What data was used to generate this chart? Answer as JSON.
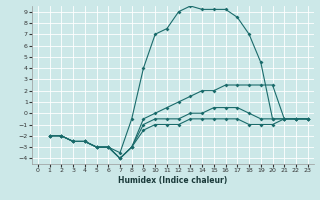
{
  "title": "",
  "xlabel": "Humidex (Indice chaleur)",
  "background_color": "#cce8e8",
  "grid_color": "#ffffff",
  "line_color": "#1a6b6b",
  "xlim": [
    -0.5,
    23.5
  ],
  "ylim": [
    -4.5,
    9.5
  ],
  "yticks": [
    -4,
    -3,
    -2,
    -1,
    0,
    1,
    2,
    3,
    4,
    5,
    6,
    7,
    8,
    9
  ],
  "xticks": [
    0,
    1,
    2,
    3,
    4,
    5,
    6,
    7,
    8,
    9,
    10,
    11,
    12,
    13,
    14,
    15,
    16,
    17,
    18,
    19,
    20,
    21,
    22,
    23
  ],
  "line1_x": [
    1,
    2,
    3,
    4,
    5,
    6,
    7,
    8,
    9,
    10,
    11,
    12,
    13,
    14,
    15,
    16,
    17,
    18,
    19,
    20,
    21,
    22,
    23
  ],
  "line1_y": [
    -2,
    -2,
    -2.5,
    -2.5,
    -3,
    -3,
    -3.5,
    -0.5,
    4.0,
    7.0,
    7.5,
    9.0,
    9.5,
    9.2,
    9.2,
    9.2,
    8.5,
    7.0,
    4.5,
    -0.5,
    -0.5,
    -0.5,
    -0.5
  ],
  "line2_x": [
    1,
    2,
    3,
    4,
    5,
    6,
    7,
    8,
    9,
    10,
    11,
    12,
    13,
    14,
    15,
    16,
    17,
    18,
    19,
    20,
    21,
    22,
    23
  ],
  "line2_y": [
    -2,
    -2,
    -2.5,
    -2.5,
    -3,
    -3,
    -4,
    -3,
    -0.5,
    0.0,
    0.5,
    1.0,
    1.5,
    2.0,
    2.0,
    2.5,
    2.5,
    2.5,
    2.5,
    2.5,
    -0.5,
    -0.5,
    -0.5
  ],
  "line3_x": [
    1,
    2,
    3,
    4,
    5,
    6,
    7,
    8,
    9,
    10,
    11,
    12,
    13,
    14,
    15,
    16,
    17,
    18,
    19,
    20,
    21,
    22,
    23
  ],
  "line3_y": [
    -2,
    -2,
    -2.5,
    -2.5,
    -3,
    -3,
    -4,
    -3,
    -1.0,
    -0.5,
    -0.5,
    -0.5,
    0.0,
    0.0,
    0.5,
    0.5,
    0.5,
    0.0,
    -0.5,
    -0.5,
    -0.5,
    -0.5,
    -0.5
  ],
  "line4_x": [
    1,
    2,
    3,
    4,
    5,
    6,
    7,
    8,
    9,
    10,
    11,
    12,
    13,
    14,
    15,
    16,
    17,
    18,
    19,
    20,
    21,
    22,
    23
  ],
  "line4_y": [
    -2,
    -2,
    -2.5,
    -2.5,
    -3,
    -3,
    -4,
    -3,
    -1.5,
    -1.0,
    -1.0,
    -1.0,
    -0.5,
    -0.5,
    -0.5,
    -0.5,
    -0.5,
    -1.0,
    -1.0,
    -1.0,
    -0.5,
    -0.5,
    -0.5
  ]
}
